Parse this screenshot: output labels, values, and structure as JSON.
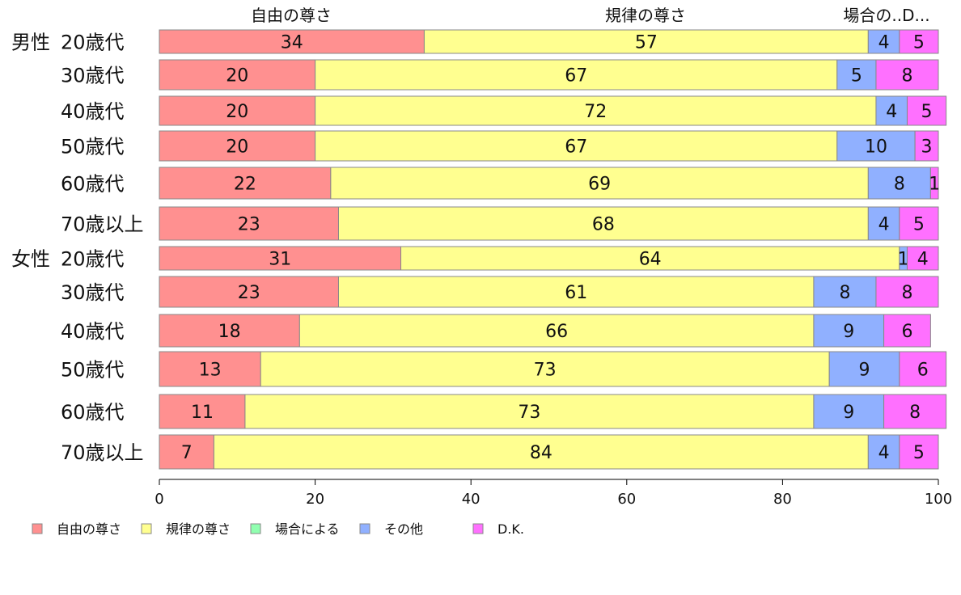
{
  "chart_data": {
    "type": "bar",
    "orientation": "horizontal",
    "stacked": true,
    "groups": [
      "男性",
      "女性"
    ],
    "categories": [
      "20歳代",
      "30歳代",
      "40歳代",
      "50歳代",
      "60歳代",
      "70歳以上",
      "20歳代",
      "30歳代",
      "40歳代",
      "50歳代",
      "60歳代",
      "70歳以上"
    ],
    "category_group": [
      0,
      0,
      0,
      0,
      0,
      0,
      1,
      1,
      1,
      1,
      1,
      1
    ],
    "series": [
      {
        "name": "自由の尊さ",
        "color": "#ff9090",
        "values": [
          34,
          20,
          20,
          20,
          22,
          23,
          31,
          23,
          18,
          13,
          11,
          7
        ]
      },
      {
        "name": "規律の尊さ",
        "color": "#ffff90",
        "values": [
          57,
          67,
          72,
          67,
          69,
          68,
          64,
          61,
          66,
          73,
          73,
          84
        ]
      },
      {
        "name": "場合による",
        "color": "#90ffb0",
        "values": [
          0,
          0,
          0,
          0,
          0,
          0,
          0,
          0,
          0,
          0,
          0,
          0
        ]
      },
      {
        "name": "その他",
        "color": "#90b0ff",
        "values": [
          4,
          5,
          4,
          10,
          8,
          4,
          1,
          8,
          9,
          9,
          9,
          4
        ]
      },
      {
        "name": "D.K.",
        "color": "#ff70ff",
        "values": [
          5,
          8,
          5,
          3,
          1,
          5,
          4,
          8,
          6,
          6,
          8,
          5
        ]
      }
    ],
    "top_labels": [
      "自由の尊さ",
      "規律の尊さ",
      "場合の..D..."
    ],
    "xlim": [
      0,
      100
    ],
    "xticks": [
      0,
      20,
      40,
      60,
      80,
      100
    ],
    "legend_position": "bottom",
    "grid": false
  }
}
